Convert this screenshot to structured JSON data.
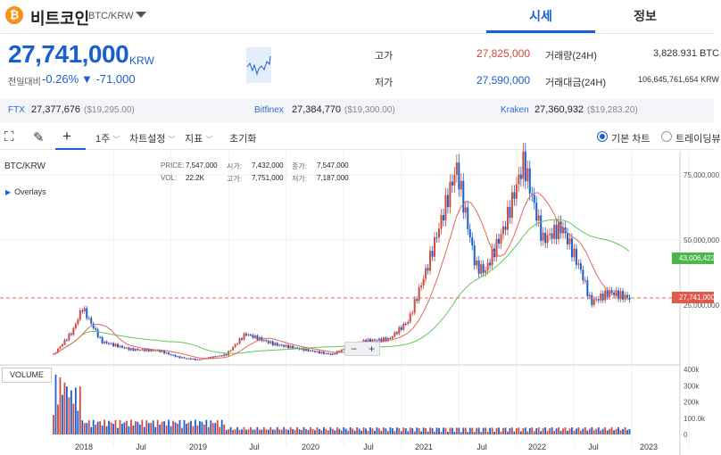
{
  "header": {
    "coin_icon": "bitcoin-icon",
    "coin_symbol": "₿",
    "coin_name": "비트코인",
    "pair": "BTC/KRW",
    "tabs": [
      {
        "label": "시세",
        "active": true
      },
      {
        "label": "정보",
        "active": false
      }
    ]
  },
  "price": {
    "value": "27,741,000",
    "unit": "KRW",
    "change_label": "전일대비",
    "change_rate": "-0.26%",
    "change_amount": "▼ -71,000"
  },
  "stats": {
    "high_label": "고가",
    "high": "27,825,000",
    "low_label": "저가",
    "low": "27,590,000",
    "volume_label": "거래량(24H)",
    "volume": "3,828.931 BTC",
    "amount_label": "거래대금(24H)",
    "amount": "106,645,761,654 KRW"
  },
  "exchanges": [
    {
      "name": "FTX",
      "value": "27,377,676",
      "usd": "($19,295.00)"
    },
    {
      "name": "Bitfinex",
      "value": "27,384,770",
      "usd": "($19,300.00)"
    },
    {
      "name": "Kraken",
      "value": "27,360,932",
      "usd": "($19,283.20)"
    }
  ],
  "toolbar": {
    "period": "1주",
    "chart_settings": "차트설정",
    "indicators": "지표",
    "reset": "초기화",
    "basic_chart": "기본 차트",
    "tradingview": "트레이딩뷰"
  },
  "chart": {
    "pair_label": "BTC/KRW",
    "overlays_label": "Overlays",
    "ohlc": {
      "price_label": "PRICE:",
      "price": "7,547,000",
      "open_label": "시가:",
      "open": "7,432,000",
      "close_label": "종가:",
      "close": "7,547,000",
      "vol_label": "VOL:",
      "vol": "22.2K",
      "high_label": "고가:",
      "high": "7,751,000",
      "low_label": "저가:",
      "low": "7,187,000"
    },
    "zoom_minus": "−",
    "zoom_plus": "+",
    "volume_label": "VOLUME",
    "last_price_badge": "27,741,000",
    "ma_badge": "43,006,422",
    "colors": {
      "up": "#d24a3b",
      "down": "#1a5fd0",
      "ma_short": "#e0685a",
      "ma_long": "#62c85a"
    }
  },
  "chart_data": {
    "type": "line",
    "title": "BTC/KRW",
    "price_axis_ticks": [
      "75,000,000",
      "50,000,000",
      "25,000,000"
    ],
    "volume_axis_ticks": [
      "400k",
      "300k",
      "200k",
      "100.0k",
      "0"
    ],
    "x_ticks": [
      "2018",
      "Jul",
      "2019",
      "Jul",
      "2020",
      "Jul",
      "2021",
      "Jul",
      "2022",
      "Jul",
      "2023"
    ],
    "series": [
      {
        "name": "BTC/KRW",
        "x": [
          "2017-10",
          "2017-12",
          "2018-01",
          "2018-03",
          "2018-06",
          "2018-09",
          "2018-11",
          "2019-01",
          "2019-04",
          "2019-06",
          "2019-09",
          "2019-12",
          "2020-03",
          "2020-06",
          "2020-09",
          "2020-11",
          "2021-01",
          "2021-03",
          "2021-04",
          "2021-06",
          "2021-07",
          "2021-09",
          "2021-11",
          "2022-01",
          "2022-03",
          "2022-05",
          "2022-06",
          "2022-08",
          "2022-10"
        ],
        "values": [
          6000000,
          15000000,
          24000000,
          11000000,
          8000000,
          7500000,
          5000000,
          4000000,
          6000000,
          14000000,
          10000000,
          8000000,
          6000000,
          11000000,
          12000000,
          19000000,
          40000000,
          65000000,
          78000000,
          40000000,
          38000000,
          55000000,
          80000000,
          50000000,
          55000000,
          38000000,
          26000000,
          30000000,
          27741000
        ]
      }
    ],
    "volume_ylim": [
      0,
      400000
    ],
    "ylim": [
      0,
      85000000
    ]
  }
}
